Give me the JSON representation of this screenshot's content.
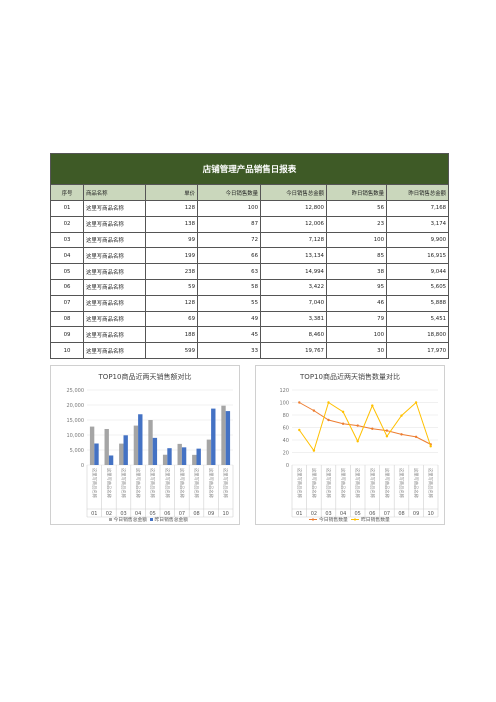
{
  "report": {
    "title": "店铺管理产品销售日报表",
    "headers": [
      "序号",
      "商品名称",
      "单价",
      "今日销售数量",
      "今日销售总金额",
      "昨日销售数量",
      "昨日销售总金额"
    ],
    "rows": [
      [
        "01",
        "这里写商品名称",
        "128",
        "100",
        "12,800",
        "56",
        "7,168"
      ],
      [
        "02",
        "这里写商品名称",
        "138",
        "87",
        "12,006",
        "23",
        "3,174"
      ],
      [
        "03",
        "这里写商品名称",
        "99",
        "72",
        "7,128",
        "100",
        "9,900"
      ],
      [
        "04",
        "这里写商品名称",
        "199",
        "66",
        "13,134",
        "85",
        "16,915"
      ],
      [
        "05",
        "这里写商品名称",
        "238",
        "63",
        "14,994",
        "38",
        "9,044"
      ],
      [
        "06",
        "这里写商品名称",
        "59",
        "58",
        "3,422",
        "95",
        "5,605"
      ],
      [
        "07",
        "这里写商品名称",
        "128",
        "55",
        "7,040",
        "46",
        "5,888"
      ],
      [
        "08",
        "这里写商品名称",
        "69",
        "49",
        "3,381",
        "79",
        "5,451"
      ],
      [
        "09",
        "这里写商品名称",
        "188",
        "45",
        "8,460",
        "100",
        "18,800"
      ],
      [
        "10",
        "这里写商品名称",
        "599",
        "33",
        "19,767",
        "30",
        "17,970"
      ]
    ]
  },
  "chart_data": [
    {
      "type": "bar",
      "title": "TOP10商品近两天销售额对比",
      "categories": [
        "01",
        "02",
        "03",
        "04",
        "05",
        "06",
        "07",
        "08",
        "09",
        "10"
      ],
      "category_labels": [
        "这里写商品名称",
        "这里写商品名称",
        "这里写商品名称",
        "这里写商品名称",
        "这里写商品名称",
        "这里写商品名称",
        "这里写商品名称",
        "这里写商品名称",
        "这里写商品名称",
        "这里写商品名称"
      ],
      "series": [
        {
          "name": "今日销售总金额",
          "color": "#a5a5a5",
          "values": [
            12800,
            12006,
            7128,
            13134,
            14994,
            3422,
            7040,
            3381,
            8460,
            19767
          ]
        },
        {
          "name": "昨日销售总金额",
          "color": "#4472c4",
          "values": [
            7168,
            3174,
            9900,
            16915,
            9044,
            5605,
            5888,
            5451,
            18800,
            17970
          ]
        }
      ],
      "yticks": [
        "0",
        "5,000",
        "10,000",
        "15,000",
        "20,000",
        "25,000"
      ],
      "ylim": [
        0,
        25000
      ],
      "legend": "bottom"
    },
    {
      "type": "line",
      "title": "TOP10商品近两天销售数量对比",
      "categories": [
        "01",
        "02",
        "03",
        "04",
        "05",
        "06",
        "07",
        "08",
        "09",
        "10"
      ],
      "category_labels": [
        "这里写商品名称",
        "这里写商品名称",
        "这里写商品名称",
        "这里写商品名称",
        "这里写商品名称",
        "这里写商品名称",
        "这里写商品名称",
        "这里写商品名称",
        "这里写商品名称",
        "这里写商品名称"
      ],
      "series": [
        {
          "name": "今日销售数量",
          "color": "#ed7d31",
          "values": [
            100,
            87,
            72,
            66,
            63,
            58,
            55,
            49,
            45,
            33
          ]
        },
        {
          "name": "昨日销售数量",
          "color": "#ffc000",
          "values": [
            56,
            23,
            100,
            85,
            38,
            95,
            46,
            79,
            100,
            30
          ]
        }
      ],
      "yticks": [
        "0",
        "20",
        "40",
        "60",
        "80",
        "100",
        "120"
      ],
      "ylim": [
        0,
        120
      ],
      "legend": "bottom"
    }
  ]
}
